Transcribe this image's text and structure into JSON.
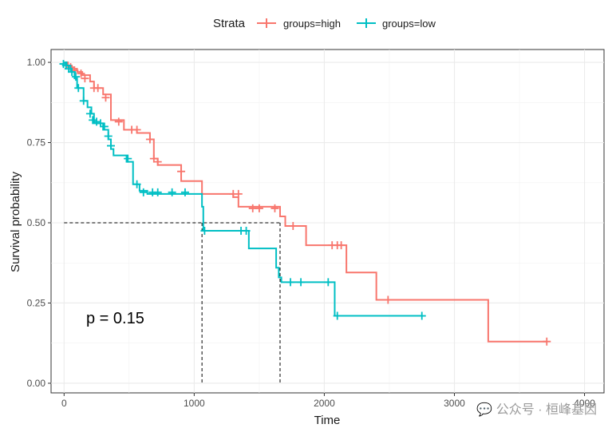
{
  "chart_data": {
    "type": "line",
    "subtype": "kaplan-meier",
    "xlabel": "Time",
    "ylabel": "Survival probability",
    "xlim": [
      -100,
      4150
    ],
    "ylim": [
      -0.03,
      1.04
    ],
    "x_ticks": [
      0,
      1000,
      2000,
      3000,
      4000
    ],
    "x_tick_labels": [
      "0",
      "1000",
      "2000",
      "3000",
      "4000"
    ],
    "y_ticks": [
      0,
      0.25,
      0.5,
      0.75,
      1
    ],
    "y_tick_labels": [
      "0.00",
      "0.25",
      "0.50",
      "0.75",
      "1.00"
    ],
    "grid": true,
    "legend": {
      "title": "Strata",
      "position": "top"
    },
    "annotation": "p = 0.15",
    "median_line": {
      "y": 0.5,
      "x_low": 1060,
      "x_high": 1660
    },
    "series": [
      {
        "name": "groups=high",
        "color": "#F8766D",
        "steps": [
          [
            0,
            1.0
          ],
          [
            30,
            0.99
          ],
          [
            60,
            0.98
          ],
          [
            100,
            0.97
          ],
          [
            140,
            0.96
          ],
          [
            200,
            0.94
          ],
          [
            230,
            0.92
          ],
          [
            300,
            0.9
          ],
          [
            360,
            0.82
          ],
          [
            460,
            0.79
          ],
          [
            560,
            0.78
          ],
          [
            660,
            0.76
          ],
          [
            690,
            0.7
          ],
          [
            720,
            0.68
          ],
          [
            900,
            0.63
          ],
          [
            1060,
            0.59
          ],
          [
            1300,
            0.58
          ],
          [
            1340,
            0.55
          ],
          [
            1660,
            0.52
          ],
          [
            1700,
            0.49
          ],
          [
            1860,
            0.43
          ],
          [
            2140,
            0.43
          ],
          [
            2170,
            0.345
          ],
          [
            2400,
            0.26
          ],
          [
            2700,
            0.26
          ],
          [
            3260,
            0.13
          ],
          [
            3710,
            0.13
          ]
        ],
        "censors": [
          [
            50,
            0.985
          ],
          [
            80,
            0.975
          ],
          [
            130,
            0.965
          ],
          [
            160,
            0.95
          ],
          [
            230,
            0.92
          ],
          [
            260,
            0.92
          ],
          [
            320,
            0.89
          ],
          [
            420,
            0.815
          ],
          [
            520,
            0.79
          ],
          [
            560,
            0.79
          ],
          [
            660,
            0.76
          ],
          [
            690,
            0.7
          ],
          [
            720,
            0.69
          ],
          [
            900,
            0.66
          ],
          [
            1300,
            0.59
          ],
          [
            1340,
            0.59
          ],
          [
            1450,
            0.545
          ],
          [
            1500,
            0.545
          ],
          [
            1620,
            0.545
          ],
          [
            1760,
            0.49
          ],
          [
            2060,
            0.43
          ],
          [
            2100,
            0.43
          ],
          [
            2130,
            0.43
          ],
          [
            2490,
            0.26
          ],
          [
            3710,
            0.13
          ]
        ]
      },
      {
        "name": "groups=low",
        "color": "#00BFC4",
        "steps": [
          [
            0,
            1.0
          ],
          [
            20,
            0.99
          ],
          [
            50,
            0.97
          ],
          [
            80,
            0.95
          ],
          [
            100,
            0.92
          ],
          [
            150,
            0.88
          ],
          [
            180,
            0.86
          ],
          [
            210,
            0.84
          ],
          [
            230,
            0.81
          ],
          [
            300,
            0.79
          ],
          [
            340,
            0.76
          ],
          [
            360,
            0.73
          ],
          [
            380,
            0.71
          ],
          [
            480,
            0.69
          ],
          [
            530,
            0.62
          ],
          [
            580,
            0.6
          ],
          [
            640,
            0.59
          ],
          [
            1060,
            0.55
          ],
          [
            1070,
            0.475
          ],
          [
            1420,
            0.42
          ],
          [
            1630,
            0.36
          ],
          [
            1650,
            0.33
          ],
          [
            1670,
            0.315
          ],
          [
            2080,
            0.21
          ],
          [
            2750,
            0.21
          ]
        ],
        "censors": [
          [
            -5,
            0.995
          ],
          [
            15,
            0.99
          ],
          [
            35,
            0.98
          ],
          [
            60,
            0.97
          ],
          [
            90,
            0.955
          ],
          [
            110,
            0.92
          ],
          [
            150,
            0.88
          ],
          [
            200,
            0.84
          ],
          [
            220,
            0.82
          ],
          [
            250,
            0.815
          ],
          [
            280,
            0.81
          ],
          [
            310,
            0.8
          ],
          [
            340,
            0.77
          ],
          [
            360,
            0.74
          ],
          [
            490,
            0.7
          ],
          [
            560,
            0.62
          ],
          [
            610,
            0.595
          ],
          [
            680,
            0.595
          ],
          [
            720,
            0.595
          ],
          [
            830,
            0.595
          ],
          [
            930,
            0.595
          ],
          [
            1080,
            0.475
          ],
          [
            1360,
            0.475
          ],
          [
            1400,
            0.475
          ],
          [
            1740,
            0.315
          ],
          [
            1820,
            0.315
          ],
          [
            2030,
            0.315
          ],
          [
            2100,
            0.21
          ],
          [
            2750,
            0.21
          ]
        ]
      }
    ]
  },
  "legend": {
    "title": "Strata",
    "items": [
      "groups=high",
      "groups=low"
    ]
  },
  "watermark": "💬 公众号 · 桓峰基因"
}
